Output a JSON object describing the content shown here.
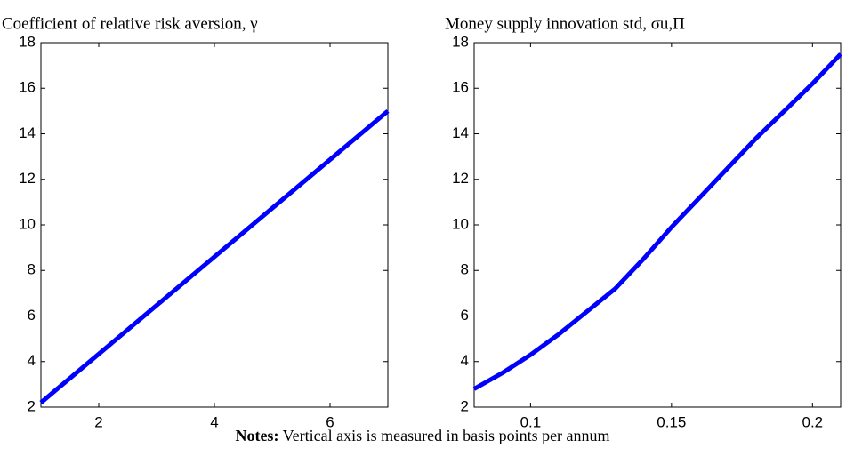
{
  "chart_data": [
    {
      "type": "line",
      "title": "Coefficient of relative risk aversion, γ",
      "x": [
        1,
        7
      ],
      "series": [
        {
          "color": "#0000ff",
          "values": [
            2.2,
            15
          ]
        }
      ],
      "xlim": [
        1,
        7
      ],
      "xticks": [
        2,
        4,
        6
      ],
      "ylim": [
        2,
        18
      ],
      "yticks": [
        2,
        4,
        6,
        8,
        10,
        12,
        14,
        16,
        18
      ]
    },
    {
      "type": "line",
      "title": "Money supply innovation std, σu,Π",
      "x": [
        0.08,
        0.09,
        0.1,
        0.11,
        0.12,
        0.13,
        0.14,
        0.15,
        0.16,
        0.17,
        0.18,
        0.19,
        0.2,
        0.21
      ],
      "series": [
        {
          "color": "#0000ff",
          "values": [
            2.8,
            3.5,
            4.3,
            5.2,
            6.2,
            7.2,
            8.5,
            9.9,
            11.2,
            12.5,
            13.8,
            15.0,
            16.2,
            17.5
          ]
        }
      ],
      "xlim": [
        0.08,
        0.21
      ],
      "xticks": [
        0.1,
        0.15,
        0.2
      ],
      "ylim": [
        2,
        18
      ],
      "yticks": [
        2,
        4,
        6,
        8,
        10,
        12,
        14,
        16,
        18
      ]
    }
  ],
  "notes": {
    "label": "Notes:",
    "text": "Vertical axis is measured in basis points per annum"
  }
}
